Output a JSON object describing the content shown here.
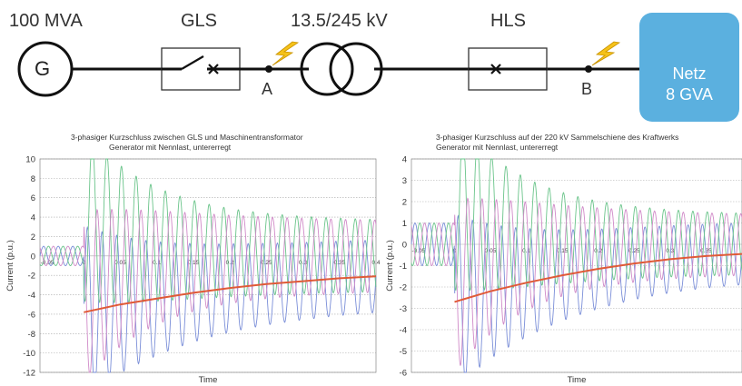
{
  "diagram": {
    "generator_rating": "100 MVA",
    "generator_symbol": "G",
    "breaker1_label": "GLS",
    "transformer_label": "13.5/245 kV",
    "breaker2_label": "HLS",
    "fault_point_a": "A",
    "fault_point_b": "B",
    "network_line1": "Netz",
    "network_line2": "8 GVA",
    "colors": {
      "network_box": "#5bb0df",
      "lightning": "#f5c21a",
      "line": "#111111"
    }
  },
  "chart_data": [
    {
      "type": "line",
      "title": "3-phasiger Kurzschluss zwischen GLS und Maschinentransformator",
      "subtitle": "Generator mit Nennlast, untererregt",
      "xlabel": "Time",
      "ylabel": "Current (p.u.)",
      "xlim": [
        -0.06,
        0.4
      ],
      "ylim": [
        -12,
        10
      ],
      "y_ticks": [
        -12,
        -10,
        -8,
        -6,
        -4,
        -2,
        0,
        2,
        4,
        6,
        8,
        10
      ],
      "x_tick_labels": [
        "-0.05",
        "0",
        "0.05",
        "0.1",
        "0.15",
        "0.2",
        "0.25",
        "0.3",
        "0.35",
        "0.4"
      ],
      "x_ticks": [
        -0.05,
        0,
        0.05,
        0.1,
        0.15,
        0.2,
        0.25,
        0.3,
        0.35,
        0.4
      ],
      "grid": true,
      "fault_time": 0,
      "phase_current_peak_before_fault": 1,
      "phase_current_first_peaks_after_fault": {
        "positive": 7.8,
        "negative": -10
      },
      "phase_current_peaks_at_end": {
        "positive": 2.5,
        "negative": -4.6
      },
      "dc_component_envelope": {
        "x": [
          0,
          0.05,
          0.1,
          0.15,
          0.2,
          0.25,
          0.3,
          0.35,
          0.4
        ],
        "y": [
          -5.8,
          -5.0,
          -4.4,
          -3.8,
          -3.3,
          -2.9,
          -2.6,
          -2.3,
          -2.1
        ]
      },
      "series_colors": [
        "#7a8ed8",
        "#6ac48a",
        "#d08ac8",
        "#e05a38"
      ]
    },
    {
      "type": "line",
      "title": "3-phasiger Kurzschluss auf der 220 kV Sammelschiene des Kraftwerks",
      "subtitle": "Generator mit Nennlast, untererregt",
      "xlabel": "Time",
      "ylabel": "Current (p.u.)",
      "xlim": [
        -0.06,
        0.4
      ],
      "ylim": [
        -6,
        4
      ],
      "y_ticks": [
        -6,
        -5,
        -4,
        -3,
        -2,
        -1,
        0,
        1,
        2,
        3,
        4
      ],
      "x_tick_labels": [
        "-0.05",
        "0",
        "0.05",
        "0.1",
        "0.15",
        "0.2",
        "0.25",
        "0.3",
        "0.35"
      ],
      "x_ticks": [
        -0.05,
        0,
        0.05,
        0.1,
        0.15,
        0.2,
        0.25,
        0.3,
        0.35
      ],
      "grid": true,
      "fault_time": 0,
      "phase_current_peak_before_fault": 1,
      "phase_current_first_peaks_after_fault": {
        "positive": 3.5,
        "negative": -4.7
      },
      "phase_current_peaks_at_end": {
        "positive": 1.1,
        "negative": -1.6
      },
      "dc_component_envelope": {
        "x": [
          0,
          0.05,
          0.1,
          0.15,
          0.2,
          0.25,
          0.3,
          0.35,
          0.4
        ],
        "y": [
          -2.7,
          -2.2,
          -1.8,
          -1.45,
          -1.15,
          -0.9,
          -0.7,
          -0.55,
          -0.45
        ]
      },
      "series_colors": [
        "#7a8ed8",
        "#6ac48a",
        "#d08ac8",
        "#e05a38"
      ]
    }
  ]
}
